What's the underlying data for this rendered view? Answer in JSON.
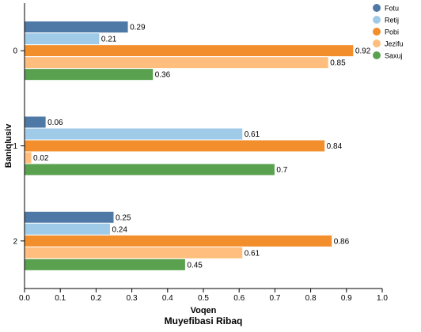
{
  "chart_data": {
    "type": "bar",
    "orientation": "horizontal",
    "title": "Muyefibasi Ribaq",
    "xlabel": "Voqen",
    "ylabel": "Baniqlusiv",
    "categories": [
      "0",
      "1",
      "2"
    ],
    "xlim": [
      0,
      1
    ],
    "xticks": [
      "0.0",
      "0.1",
      "0.2",
      "0.3",
      "0.4",
      "0.5",
      "0.6",
      "0.7",
      "0.8",
      "0.9",
      "1.0"
    ],
    "grid": false,
    "legend_position": "top-right",
    "series": [
      {
        "name": "Fotu",
        "color": "#4e79a7",
        "values": [
          0.29,
          0.06,
          0.25
        ],
        "labels": [
          "0.29",
          "0.06",
          "0.25"
        ]
      },
      {
        "name": "Retij",
        "color": "#a0cbe8",
        "values": [
          0.21,
          0.61,
          0.24
        ],
        "labels": [
          "0.21",
          "0.61",
          "0.24"
        ]
      },
      {
        "name": "Pobi",
        "color": "#f28e2b",
        "values": [
          0.92,
          0.84,
          0.86
        ],
        "labels": [
          "0.92",
          "0.84",
          "0.86"
        ]
      },
      {
        "name": "Jezifu",
        "color": "#ffbe7d",
        "values": [
          0.85,
          0.02,
          0.61
        ],
        "labels": [
          "0.85",
          "0.02",
          "0.61"
        ]
      },
      {
        "name": "Saxuj",
        "color": "#59a14f",
        "values": [
          0.36,
          0.7,
          0.45
        ],
        "labels": [
          "0.36",
          "0.7",
          "0.45"
        ]
      }
    ]
  }
}
